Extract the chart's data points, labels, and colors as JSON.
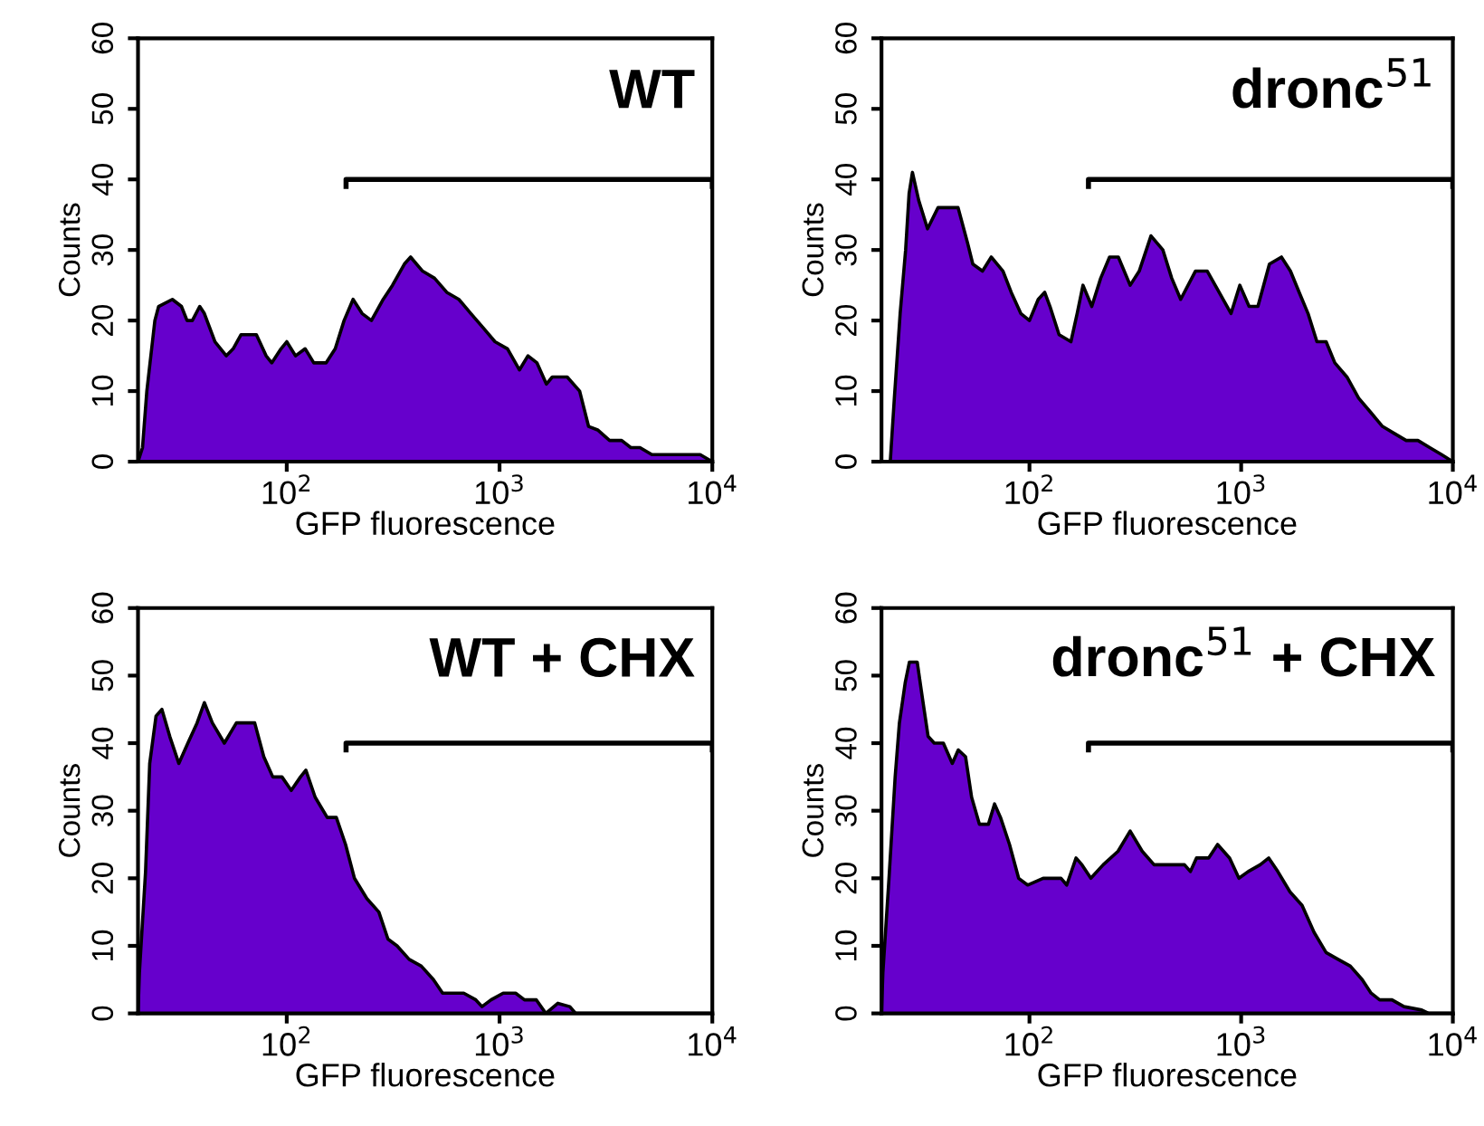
{
  "chart_data": [
    {
      "type": "area",
      "title": "WT",
      "xlabel": "GFP fluorescence",
      "ylabel": "Counts",
      "log": "x",
      "xlim": [
        20,
        10000
      ],
      "ylim": [
        0,
        60
      ],
      "xticks": [
        {
          "value": 100,
          "label": "10$^{2}$"
        },
        {
          "value": 1000,
          "label": "10$^{3}$"
        },
        {
          "value": 10000,
          "label": "10$^{4}$"
        }
      ],
      "yticks": [
        0,
        10,
        20,
        30,
        40,
        50,
        60
      ],
      "series": [
        {
          "color": "#6600cc",
          "x": [
            20,
            21,
            22,
            24,
            25,
            29,
            32,
            34,
            36,
            39,
            41,
            46,
            52,
            56,
            61,
            72,
            80,
            85,
            94,
            100,
            110,
            122,
            134,
            153,
            169,
            186,
            205,
            226,
            250,
            284,
            314,
            357,
            382,
            435,
            495,
            565,
            644,
            733,
            836,
            952,
            1090,
            1240,
            1360,
            1500,
            1660,
            1770,
            2080,
            2380,
            2620,
            2890,
            3290,
            3750,
            4140,
            4570,
            5200,
            5930,
            7210,
            8770,
            10000
          ],
          "values": [
            0,
            2,
            10,
            20,
            22,
            23,
            22,
            20,
            20,
            22,
            21,
            17,
            15,
            16,
            18,
            18,
            15,
            14,
            16,
            17,
            15,
            16,
            14,
            14,
            16,
            20,
            23,
            21,
            20,
            23,
            25,
            28,
            29,
            27,
            26,
            24,
            23,
            21,
            19,
            17,
            16,
            13,
            15,
            14,
            11,
            12,
            12,
            10,
            5,
            4.5,
            3,
            3,
            2,
            2,
            1,
            1,
            1,
            1,
            0
          ]
        },
        {
          "type": "line",
          "color": "#000000",
          "x": [
            190,
            190,
            10000,
            10000
          ],
          "values": [
            39,
            40,
            40,
            39
          ]
        }
      ]
    },
    {
      "type": "area",
      "title": "dronc$^{51}$",
      "xlabel": "GFP fluorescence",
      "ylabel": "Counts",
      "log": "x",
      "xlim": [
        20,
        10000
      ],
      "ylim": [
        0,
        60
      ],
      "xticks": [
        {
          "value": 100,
          "label": "10$^{2}$"
        },
        {
          "value": 1000,
          "label": "10$^{3}$"
        },
        {
          "value": 10000,
          "label": "10$^{4}$"
        }
      ],
      "yticks": [
        0,
        10,
        20,
        30,
        40,
        50,
        60
      ],
      "series": [
        {
          "color": "#6600cc",
          "x": [
            22,
            23,
            24.5,
            26,
            27,
            28,
            30,
            33,
            37,
            46,
            51,
            54,
            60,
            66,
            75,
            82,
            91,
            100,
            110,
            118,
            125,
            138,
            157,
            168,
            179,
            197,
            217,
            239,
            263,
            299,
            330,
            375,
            427,
            470,
            518,
            608,
            692,
            787,
            896,
            986,
            1090,
            1200,
            1360,
            1550,
            1710,
            1880,
            2070,
            2280,
            2520,
            2770,
            3160,
            3590,
            4090,
            4650,
            5290,
            6020,
            6840,
            7780,
            8850,
            10000
          ],
          "values": [
            0,
            9,
            21,
            30,
            38,
            41,
            37,
            33,
            36,
            36,
            31,
            28,
            27,
            29,
            27,
            24,
            21,
            20,
            23,
            24,
            22,
            18,
            17,
            21,
            25,
            22,
            26,
            29,
            29,
            25,
            27,
            32,
            30,
            26,
            23,
            27,
            27,
            24,
            21,
            25,
            22,
            22,
            28,
            29,
            27,
            24,
            21,
            17,
            17,
            14,
            12,
            9,
            7,
            5,
            4,
            3,
            3,
            2,
            1,
            0
          ]
        },
        {
          "type": "line",
          "color": "#000000",
          "x": [
            190,
            190,
            10000,
            10000
          ],
          "values": [
            39,
            40,
            40,
            39
          ]
        }
      ]
    },
    {
      "type": "area",
      "title": "WT + CHX",
      "xlabel": "GFP fluorescence",
      "ylabel": "Counts",
      "log": "x",
      "xlim": [
        20,
        10000
      ],
      "ylim": [
        0,
        60
      ],
      "xticks": [
        {
          "value": 100,
          "label": "10$^{2}$"
        },
        {
          "value": 1000,
          "label": "10$^{3}$"
        },
        {
          "value": 10000,
          "label": "10$^{4}$"
        }
      ],
      "yticks": [
        0,
        10,
        20,
        30,
        40,
        50,
        60
      ],
      "series": [
        {
          "color": "#6600cc",
          "x": [
            20,
            20.3,
            21.7,
            22.7,
            24.3,
            25.9,
            28.2,
            31.1,
            34.3,
            37.9,
            41,
            44.7,
            50.9,
            58,
            70.7,
            78,
            86,
            95,
            105,
            116,
            123,
            136,
            155,
            171,
            189,
            208,
            238,
            271,
            299,
            330,
            376,
            429,
            489,
            540,
            679,
            774,
            827,
            912,
            1040,
            1190,
            1310,
            1490,
            1650,
            1880,
            2140,
            2280,
            10000
          ],
          "values": [
            0,
            6,
            21,
            37,
            44,
            45,
            41,
            37,
            40,
            43,
            46,
            43,
            40,
            43,
            43,
            38,
            35,
            35,
            33,
            35,
            36,
            32,
            29,
            29,
            25,
            20,
            17,
            15,
            11,
            10,
            8,
            7,
            5,
            3,
            3,
            2,
            1,
            2,
            3,
            3,
            2,
            2,
            0,
            1.5,
            1,
            0,
            0
          ]
        },
        {
          "type": "line",
          "color": "#000000",
          "x": [
            190,
            190,
            10000,
            10000
          ],
          "values": [
            39,
            40,
            40,
            39
          ]
        }
      ]
    },
    {
      "type": "area",
      "title": "dronc$^{51}$ + CHX",
      "xlabel": "GFP fluorescence",
      "ylabel": "Counts",
      "log": "x",
      "xlim": [
        20,
        10000
      ],
      "ylim": [
        0,
        60
      ],
      "xticks": [
        {
          "value": 100,
          "label": "10$^{2}$"
        },
        {
          "value": 1000,
          "label": "10$^{3}$"
        },
        {
          "value": 10000,
          "label": "10$^{4}$"
        }
      ],
      "yticks": [
        0,
        10,
        20,
        30,
        40,
        50,
        60
      ],
      "series": [
        {
          "color": "#6600cc",
          "x": [
            20,
            20.3,
            21.7,
            23.2,
            24.3,
            25.9,
            27.1,
            29.5,
            31.1,
            33.2,
            35.5,
            39.2,
            43.2,
            46.1,
            49.9,
            53.3,
            58,
            64,
            68.4,
            73,
            80.5,
            88.9,
            98,
            116,
            141,
            150,
            166,
            177,
            195,
            223,
            262,
            299,
            341,
            388,
            540,
            576,
            615,
            702,
            774,
            882,
            976,
            1080,
            1230,
            1350,
            1490,
            1700,
            1940,
            2210,
            2520,
            2870,
            3280,
            3730,
            4110,
            4510,
            5160,
            5880,
            7130,
            7700,
            10000
          ],
          "values": [
            0,
            6,
            20,
            35,
            43,
            49,
            52,
            52,
            47,
            41,
            40,
            40,
            37,
            39,
            38,
            32,
            28,
            28,
            31,
            29,
            25,
            20,
            19,
            20,
            20,
            19,
            23,
            22,
            20,
            22,
            24,
            27,
            24,
            22,
            22,
            21,
            23,
            23,
            25,
            23,
            20,
            21,
            22,
            23,
            21,
            18,
            16,
            12,
            9,
            8,
            7,
            5,
            3,
            2,
            2,
            1,
            0.5,
            0,
            0
          ]
        },
        {
          "type": "line",
          "color": "#000000",
          "x": [
            190,
            190,
            10000,
            10000
          ],
          "values": [
            39,
            40,
            40,
            39
          ]
        }
      ]
    }
  ]
}
